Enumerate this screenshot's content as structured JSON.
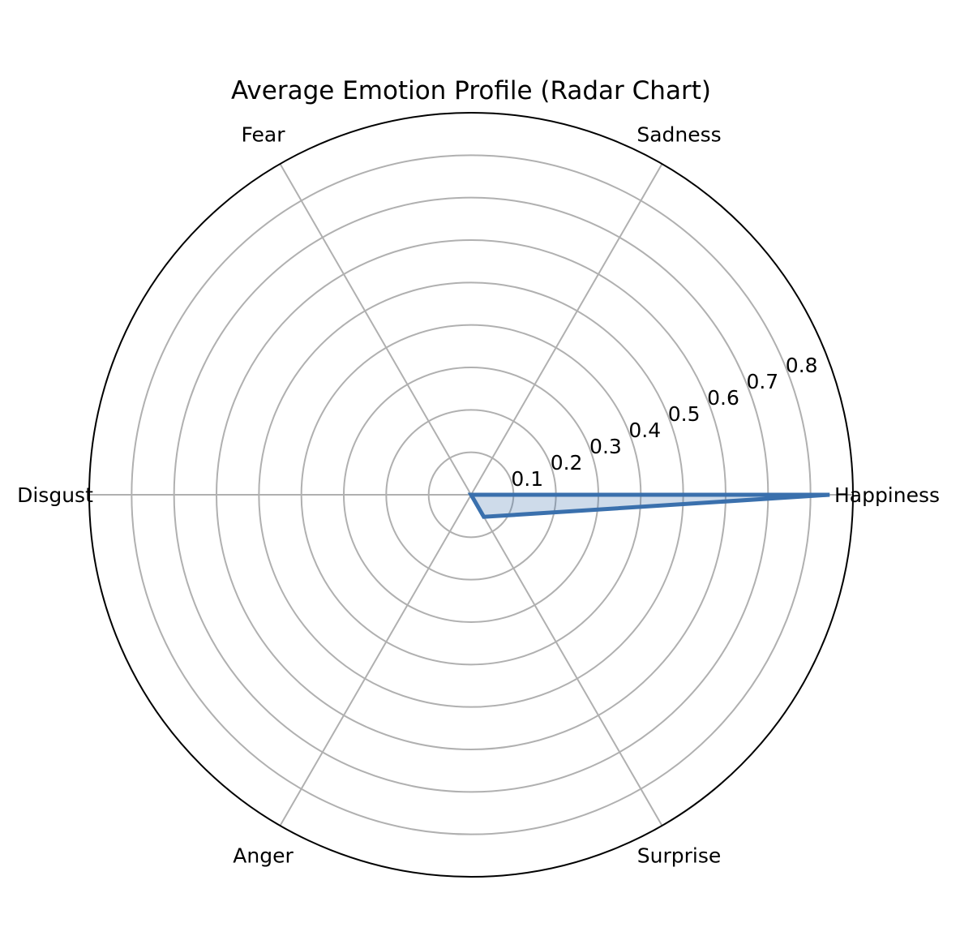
{
  "chart_data": {
    "type": "radar",
    "title": "Average Emotion Profile (Radar Chart)",
    "categories": [
      "Happiness",
      "Sadness",
      "Fear",
      "Disgust",
      "Anger",
      "Surprise"
    ],
    "series": [
      {
        "values": [
          0.845,
          0.0,
          0.0,
          0.0,
          0.0,
          0.06
        ],
        "color": "#3a70ad",
        "fill_color": "#3a70ad",
        "fill_opacity": 0.25
      }
    ],
    "r_ticks": [
      "0.1",
      "0.2",
      "0.3",
      "0.4",
      "0.5",
      "0.6",
      "0.7",
      "0.8"
    ],
    "r_tick_values": [
      0.1,
      0.2,
      0.3,
      0.4,
      0.5,
      0.6,
      0.7,
      0.8
    ],
    "rlim": [
      0,
      0.9
    ],
    "grid": true,
    "colors": {
      "grid": "#b0b0b0",
      "frame": "#000000"
    }
  }
}
